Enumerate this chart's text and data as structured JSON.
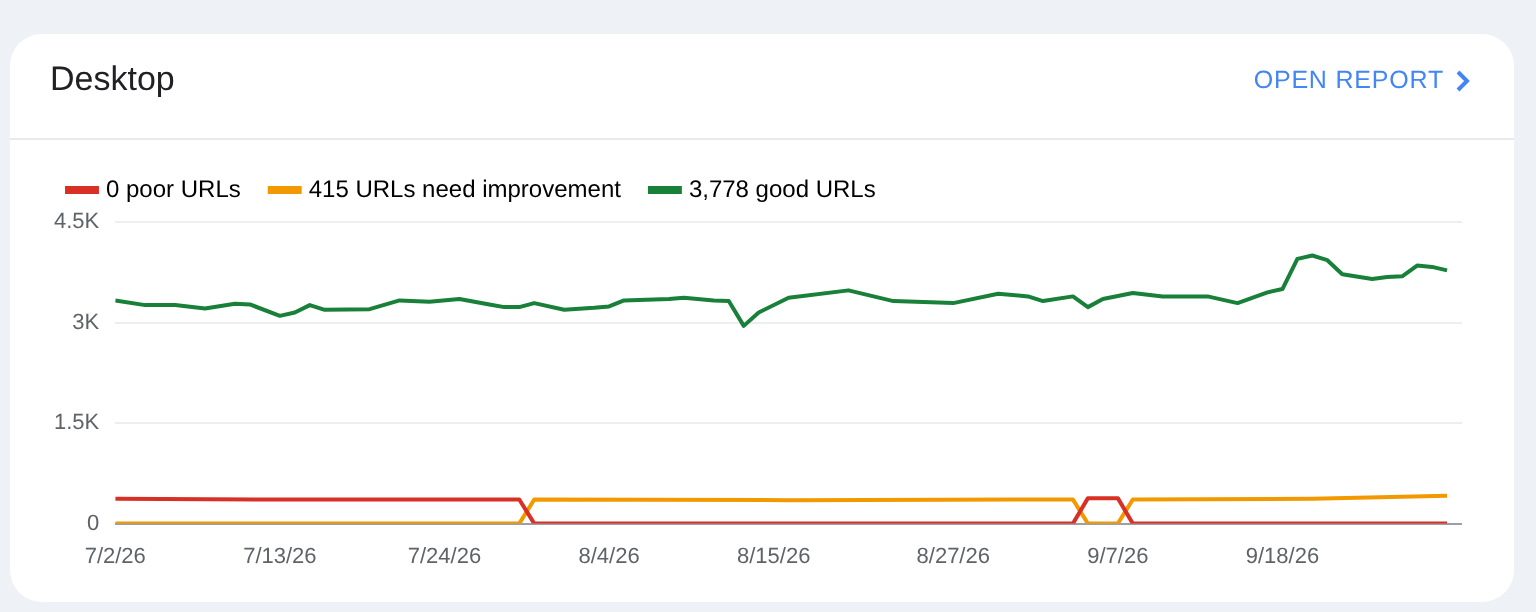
{
  "chart_data": {
    "type": "line",
    "title": "Desktop",
    "annotations": [
      "OPEN REPORT"
    ],
    "legend": "top left",
    "grid": "y",
    "line_style": "solid",
    "xlim": [
      "--07-02",
      "--09-30"
    ],
    "xticks": [
      {
        "value": "--07-02",
        "label": "7/2/26"
      },
      {
        "value": "--07-13",
        "label": "7/13/26"
      },
      {
        "value": "--07-24",
        "label": "7/24/26"
      },
      {
        "value": "--08-04",
        "label": "8/4/26"
      },
      {
        "value": "--08-15",
        "label": "8/15/26"
      },
      {
        "value": "--08-27",
        "label": "8/27/26"
      },
      {
        "value": "--09-07",
        "label": "9/7/26"
      },
      {
        "value": "--09-18",
        "label": "9/18/26"
      }
    ],
    "ylim": [
      0,
      4500
    ],
    "yticks": [
      0,
      {
        "value": 1500,
        "label": "1.5K"
      },
      {
        "value": 3000,
        "label": "3K"
      },
      {
        "value": 4500,
        "label": "4.5K"
      }
    ],
    "series": [
      {
        "name": "0 poor URLs",
        "color": "#d93025",
        "x": [
          "--07-02",
          "--07-12",
          "--07-29",
          "--07-30",
          "--09-04",
          "--09-05",
          "--09-07",
          "--09-08",
          "--09-29"
        ],
        "values": [
          370,
          360,
          360,
          0,
          0,
          380,
          380,
          0,
          0
        ]
      },
      {
        "name": "415 URLs need improvement",
        "color": "#f29900",
        "x": [
          "--07-02",
          "--07-29",
          "--07-30",
          "--08-16",
          "--09-04",
          "--09-05",
          "--09-07",
          "--09-08",
          "--09-20",
          "--09-29"
        ],
        "values": [
          0,
          0,
          360,
          350,
          360,
          0,
          0,
          360,
          370,
          415
        ]
      },
      {
        "name": "3,778 good URLs",
        "color": "#188038",
        "x": [
          "--07-02",
          "--07-04",
          "--07-06",
          "--07-08",
          "--07-10",
          "--07-11",
          "--07-13",
          "--07-14",
          "--07-15",
          "--07-16",
          "--07-19",
          "--07-21",
          "--07-23",
          "--07-25",
          "--07-27",
          "--07-28",
          "--07-29",
          "--07-30",
          "--08-01",
          "--08-03",
          "--08-04",
          "--08-05",
          "--08-08",
          "--08-09",
          "--08-11",
          "--08-12",
          "--08-13",
          "--08-14",
          "--08-16",
          "--08-20",
          "--08-23",
          "--08-27",
          "--08-30",
          "--09-01",
          "--09-02",
          "--09-04",
          "--09-05",
          "--09-06",
          "--09-08",
          "--09-10",
          "--09-13",
          "--09-15",
          "--09-17",
          "--09-18",
          "--09-19",
          "--09-20",
          "--09-21",
          "--09-22",
          "--09-24",
          "--09-25",
          "--09-26",
          "--09-27",
          "--09-28",
          "--09-29"
        ],
        "values": [
          3330,
          3260,
          3260,
          3210,
          3280,
          3270,
          3100,
          3150,
          3260,
          3190,
          3200,
          3330,
          3310,
          3350,
          3270,
          3230,
          3230,
          3290,
          3190,
          3220,
          3240,
          3330,
          3350,
          3370,
          3330,
          3320,
          2950,
          3150,
          3370,
          3480,
          3320,
          3290,
          3430,
          3390,
          3320,
          3390,
          3230,
          3350,
          3440,
          3390,
          3390,
          3290,
          3450,
          3500,
          3950,
          4000,
          3930,
          3720,
          3650,
          3680,
          3690,
          3850,
          3830,
          3778
        ]
      }
    ]
  }
}
